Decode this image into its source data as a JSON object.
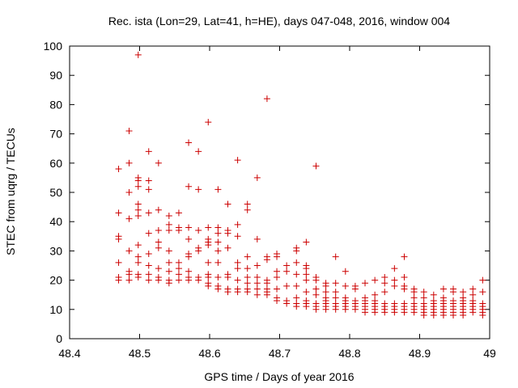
{
  "chart_data": {
    "type": "scatter",
    "title": "Rec. ista (Lon=29, Lat=41, h=HE), days 047-048, 2016, window 004",
    "xlabel": "GPS time / Days of year 2016",
    "ylabel": "STEC from uqrg / TECUs",
    "xlim": [
      48.4,
      49.0
    ],
    "ylim": [
      0,
      100
    ],
    "x_ticks": [
      "48.4",
      "48.5",
      "48.6",
      "48.7",
      "48.8",
      "48.9",
      "49"
    ],
    "y_ticks": [
      "0",
      "10",
      "20",
      "30",
      "40",
      "50",
      "60",
      "70",
      "80",
      "90",
      "100"
    ],
    "grid": false,
    "legend": "none",
    "marker": "plus",
    "color": "#cc0000",
    "points": [
      [
        48.47,
        58
      ],
      [
        48.47,
        43
      ],
      [
        48.47,
        35
      ],
      [
        48.47,
        34
      ],
      [
        48.47,
        26
      ],
      [
        48.47,
        21
      ],
      [
        48.47,
        20
      ],
      [
        48.485,
        71
      ],
      [
        48.485,
        60
      ],
      [
        48.485,
        50
      ],
      [
        48.485,
        41
      ],
      [
        48.485,
        30
      ],
      [
        48.485,
        23
      ],
      [
        48.485,
        22
      ],
      [
        48.485,
        20
      ],
      [
        48.498,
        97
      ],
      [
        48.498,
        55
      ],
      [
        48.498,
        54
      ],
      [
        48.498,
        52
      ],
      [
        48.498,
        46
      ],
      [
        48.498,
        44
      ],
      [
        48.498,
        42
      ],
      [
        48.498,
        32
      ],
      [
        48.498,
        28
      ],
      [
        48.498,
        26
      ],
      [
        48.498,
        22
      ],
      [
        48.498,
        21
      ],
      [
        48.513,
        64
      ],
      [
        48.513,
        54
      ],
      [
        48.513,
        51
      ],
      [
        48.513,
        43
      ],
      [
        48.513,
        36
      ],
      [
        48.513,
        29
      ],
      [
        48.513,
        25
      ],
      [
        48.513,
        22
      ],
      [
        48.513,
        20
      ],
      [
        48.527,
        60
      ],
      [
        48.527,
        44
      ],
      [
        48.527,
        37
      ],
      [
        48.527,
        33
      ],
      [
        48.527,
        31
      ],
      [
        48.527,
        24
      ],
      [
        48.527,
        21
      ],
      [
        48.527,
        20
      ],
      [
        48.542,
        42
      ],
      [
        48.542,
        39
      ],
      [
        48.542,
        37
      ],
      [
        48.542,
        30
      ],
      [
        48.542,
        26
      ],
      [
        48.542,
        23
      ],
      [
        48.542,
        20
      ],
      [
        48.542,
        19
      ],
      [
        48.556,
        43
      ],
      [
        48.556,
        38
      ],
      [
        48.556,
        37
      ],
      [
        48.556,
        26
      ],
      [
        48.556,
        24
      ],
      [
        48.556,
        22
      ],
      [
        48.556,
        20
      ],
      [
        48.57,
        67
      ],
      [
        48.57,
        52
      ],
      [
        48.57,
        38
      ],
      [
        48.57,
        34
      ],
      [
        48.57,
        29
      ],
      [
        48.57,
        28
      ],
      [
        48.57,
        23
      ],
      [
        48.57,
        21
      ],
      [
        48.57,
        20
      ],
      [
        48.584,
        64
      ],
      [
        48.584,
        51
      ],
      [
        48.584,
        37
      ],
      [
        48.584,
        31
      ],
      [
        48.584,
        30
      ],
      [
        48.584,
        21
      ],
      [
        48.584,
        20
      ],
      [
        48.598,
        74
      ],
      [
        48.598,
        38
      ],
      [
        48.598,
        34
      ],
      [
        48.598,
        33
      ],
      [
        48.598,
        32
      ],
      [
        48.598,
        26
      ],
      [
        48.598,
        22
      ],
      [
        48.598,
        21
      ],
      [
        48.598,
        19
      ],
      [
        48.598,
        18
      ],
      [
        48.612,
        51
      ],
      [
        48.612,
        38
      ],
      [
        48.612,
        36
      ],
      [
        48.612,
        33
      ],
      [
        48.612,
        30
      ],
      [
        48.612,
        26
      ],
      [
        48.612,
        21
      ],
      [
        48.612,
        18
      ],
      [
        48.612,
        17
      ],
      [
        48.626,
        46
      ],
      [
        48.626,
        37
      ],
      [
        48.626,
        36
      ],
      [
        48.626,
        31
      ],
      [
        48.626,
        22
      ],
      [
        48.626,
        21
      ],
      [
        48.626,
        17
      ],
      [
        48.626,
        16
      ],
      [
        48.64,
        61
      ],
      [
        48.64,
        39
      ],
      [
        48.64,
        35
      ],
      [
        48.64,
        26
      ],
      [
        48.64,
        24
      ],
      [
        48.64,
        20
      ],
      [
        48.64,
        17
      ],
      [
        48.64,
        16
      ],
      [
        48.654,
        46
      ],
      [
        48.654,
        44
      ],
      [
        48.654,
        28
      ],
      [
        48.654,
        24
      ],
      [
        48.654,
        21
      ],
      [
        48.654,
        19
      ],
      [
        48.654,
        17
      ],
      [
        48.654,
        16
      ],
      [
        48.668,
        55
      ],
      [
        48.668,
        34
      ],
      [
        48.668,
        25
      ],
      [
        48.668,
        21
      ],
      [
        48.668,
        19
      ],
      [
        48.668,
        17
      ],
      [
        48.668,
        15
      ],
      [
        48.682,
        82
      ],
      [
        48.682,
        28
      ],
      [
        48.682,
        27
      ],
      [
        48.682,
        20
      ],
      [
        48.682,
        19
      ],
      [
        48.682,
        17
      ],
      [
        48.682,
        16
      ],
      [
        48.682,
        15
      ],
      [
        48.696,
        29
      ],
      [
        48.696,
        28
      ],
      [
        48.696,
        23
      ],
      [
        48.696,
        21
      ],
      [
        48.696,
        17
      ],
      [
        48.696,
        14
      ],
      [
        48.696,
        13
      ],
      [
        48.71,
        25
      ],
      [
        48.71,
        23
      ],
      [
        48.71,
        18
      ],
      [
        48.71,
        13
      ],
      [
        48.71,
        12
      ],
      [
        48.724,
        31
      ],
      [
        48.724,
        30
      ],
      [
        48.724,
        26
      ],
      [
        48.724,
        22
      ],
      [
        48.724,
        18
      ],
      [
        48.724,
        14
      ],
      [
        48.724,
        12
      ],
      [
        48.724,
        11
      ],
      [
        48.738,
        33
      ],
      [
        48.738,
        25
      ],
      [
        48.738,
        24
      ],
      [
        48.738,
        22
      ],
      [
        48.738,
        20
      ],
      [
        48.738,
        16
      ],
      [
        48.738,
        13
      ],
      [
        48.738,
        12
      ],
      [
        48.738,
        11
      ],
      [
        48.752,
        59
      ],
      [
        48.752,
        21
      ],
      [
        48.752,
        20
      ],
      [
        48.752,
        17
      ],
      [
        48.752,
        15
      ],
      [
        48.752,
        12
      ],
      [
        48.752,
        11
      ],
      [
        48.752,
        10
      ],
      [
        48.766,
        19
      ],
      [
        48.766,
        18
      ],
      [
        48.766,
        16
      ],
      [
        48.766,
        14
      ],
      [
        48.766,
        13
      ],
      [
        48.766,
        12
      ],
      [
        48.766,
        11
      ],
      [
        48.766,
        10
      ],
      [
        48.78,
        28
      ],
      [
        48.78,
        19
      ],
      [
        48.78,
        16
      ],
      [
        48.78,
        14
      ],
      [
        48.78,
        12
      ],
      [
        48.78,
        11
      ],
      [
        48.78,
        10
      ],
      [
        48.794,
        23
      ],
      [
        48.794,
        18
      ],
      [
        48.794,
        14
      ],
      [
        48.794,
        13
      ],
      [
        48.794,
        12
      ],
      [
        48.794,
        11
      ],
      [
        48.794,
        10
      ],
      [
        48.808,
        18
      ],
      [
        48.808,
        17
      ],
      [
        48.808,
        13
      ],
      [
        48.808,
        12
      ],
      [
        48.808,
        11
      ],
      [
        48.808,
        10
      ],
      [
        48.822,
        19
      ],
      [
        48.822,
        14
      ],
      [
        48.822,
        13
      ],
      [
        48.822,
        12
      ],
      [
        48.822,
        11
      ],
      [
        48.822,
        10
      ],
      [
        48.822,
        9
      ],
      [
        48.836,
        20
      ],
      [
        48.836,
        15
      ],
      [
        48.836,
        13
      ],
      [
        48.836,
        12
      ],
      [
        48.836,
        11
      ],
      [
        48.836,
        10
      ],
      [
        48.836,
        9
      ],
      [
        48.85,
        21
      ],
      [
        48.85,
        19
      ],
      [
        48.85,
        16
      ],
      [
        48.85,
        12
      ],
      [
        48.85,
        11
      ],
      [
        48.85,
        10
      ],
      [
        48.85,
        9
      ],
      [
        48.864,
        24
      ],
      [
        48.864,
        20
      ],
      [
        48.864,
        18
      ],
      [
        48.864,
        12
      ],
      [
        48.864,
        11
      ],
      [
        48.864,
        10
      ],
      [
        48.864,
        9
      ],
      [
        48.878,
        28
      ],
      [
        48.878,
        21
      ],
      [
        48.878,
        18
      ],
      [
        48.878,
        17
      ],
      [
        48.878,
        12
      ],
      [
        48.878,
        11
      ],
      [
        48.878,
        10
      ],
      [
        48.878,
        9
      ],
      [
        48.892,
        17
      ],
      [
        48.892,
        16
      ],
      [
        48.892,
        14
      ],
      [
        48.892,
        12
      ],
      [
        48.892,
        11
      ],
      [
        48.892,
        10
      ],
      [
        48.892,
        9
      ],
      [
        48.906,
        16
      ],
      [
        48.906,
        14
      ],
      [
        48.906,
        12
      ],
      [
        48.906,
        11
      ],
      [
        48.906,
        10
      ],
      [
        48.906,
        9
      ],
      [
        48.906,
        8
      ],
      [
        48.92,
        15
      ],
      [
        48.92,
        13
      ],
      [
        48.92,
        12
      ],
      [
        48.92,
        11
      ],
      [
        48.92,
        10
      ],
      [
        48.92,
        9
      ],
      [
        48.92,
        8
      ],
      [
        48.934,
        17
      ],
      [
        48.934,
        14
      ],
      [
        48.934,
        13
      ],
      [
        48.934,
        12
      ],
      [
        48.934,
        11
      ],
      [
        48.934,
        10
      ],
      [
        48.934,
        9
      ],
      [
        48.934,
        8
      ],
      [
        48.948,
        17
      ],
      [
        48.948,
        16
      ],
      [
        48.948,
        13
      ],
      [
        48.948,
        12
      ],
      [
        48.948,
        11
      ],
      [
        48.948,
        10
      ],
      [
        48.948,
        9
      ],
      [
        48.948,
        8
      ],
      [
        48.962,
        16
      ],
      [
        48.962,
        14
      ],
      [
        48.962,
        13
      ],
      [
        48.962,
        12
      ],
      [
        48.962,
        11
      ],
      [
        48.962,
        10
      ],
      [
        48.962,
        9
      ],
      [
        48.962,
        8
      ],
      [
        48.976,
        17
      ],
      [
        48.976,
        15
      ],
      [
        48.976,
        13
      ],
      [
        48.976,
        12
      ],
      [
        48.976,
        11
      ],
      [
        48.976,
        10
      ],
      [
        48.976,
        9
      ],
      [
        48.99,
        20
      ],
      [
        48.99,
        16
      ],
      [
        48.99,
        12
      ],
      [
        48.99,
        11
      ],
      [
        48.99,
        10
      ],
      [
        48.99,
        9
      ],
      [
        48.99,
        8
      ]
    ]
  }
}
